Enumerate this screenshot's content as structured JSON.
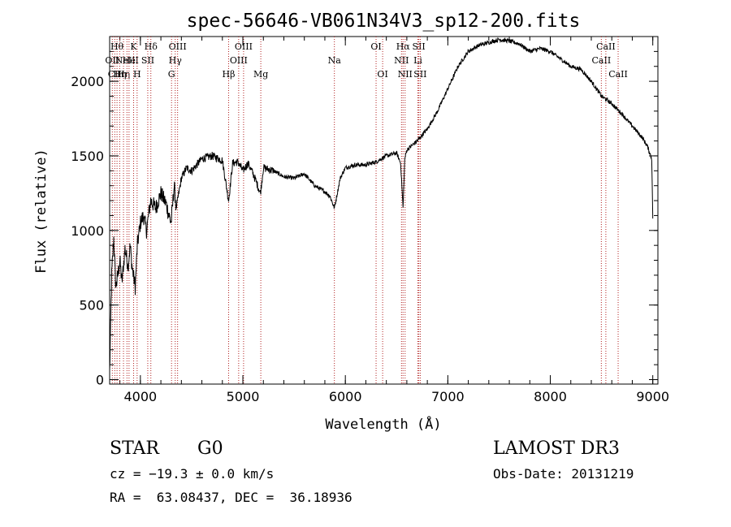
{
  "chart_data": {
    "type": "line",
    "title": "spec-56646-VB061N34V3_sp12-200.fits",
    "xlabel": "Wavelength (Å)",
    "ylabel": "Flux (relative)",
    "xlim": [
      3700,
      9050
    ],
    "ylim": [
      -30,
      2300
    ],
    "xticks": [
      4000,
      5000,
      6000,
      7000,
      8000,
      9000
    ],
    "yticks": [
      0,
      500,
      1000,
      1500,
      2000
    ],
    "grid": false,
    "line_color": "#000000",
    "marker_color": "#b22222",
    "series": [
      {
        "name": "flux",
        "x": [
          3700,
          3720,
          3740,
          3760,
          3780,
          3800,
          3820,
          3850,
          3880,
          3900,
          3920,
          3950,
          3970,
          4000,
          4030,
          4060,
          4100,
          4150,
          4200,
          4250,
          4300,
          4330,
          4350,
          4400,
          4450,
          4500,
          4600,
          4700,
          4800,
          4861,
          4900,
          4950,
          5000,
          5050,
          5100,
          5172,
          5200,
          5300,
          5400,
          5500,
          5600,
          5700,
          5800,
          5850,
          5893,
          5950,
          6000,
          6100,
          6200,
          6300,
          6400,
          6500,
          6540,
          6563,
          6580,
          6600,
          6700,
          6800,
          6900,
          7000,
          7100,
          7200,
          7300,
          7400,
          7500,
          7600,
          7700,
          7800,
          7900,
          8000,
          8100,
          8200,
          8300,
          8400,
          8500,
          8600,
          8700,
          8800,
          8900,
          8950,
          8990,
          9000
        ],
        "y": [
          50,
          700,
          950,
          620,
          700,
          800,
          650,
          880,
          760,
          900,
          750,
          620,
          900,
          1050,
          1100,
          1000,
          1200,
          1150,
          1250,
          1180,
          1050,
          1300,
          1150,
          1350,
          1420,
          1400,
          1480,
          1500,
          1470,
          1200,
          1450,
          1460,
          1400,
          1450,
          1380,
          1250,
          1420,
          1400,
          1360,
          1350,
          1380,
          1300,
          1260,
          1230,
          1150,
          1350,
          1420,
          1440,
          1440,
          1460,
          1500,
          1520,
          1450,
          1150,
          1480,
          1540,
          1600,
          1680,
          1800,
          1950,
          2100,
          2200,
          2240,
          2260,
          2280,
          2270,
          2250,
          2200,
          2220,
          2200,
          2150,
          2100,
          2080,
          2000,
          1900,
          1850,
          1780,
          1700,
          1620,
          1560,
          1480,
          1080
        ]
      }
    ],
    "lines": [
      {
        "wl": 3726,
        "label": "OII",
        "row": 2
      },
      {
        "wl": 3750,
        "label": "CII",
        "row": 3
      },
      {
        "wl": 3772,
        "label": "Hθ",
        "row": 1
      },
      {
        "wl": 3798,
        "label": "Hη",
        "row": 3
      },
      {
        "wl": 3835,
        "label": "Hη",
        "row": 3
      },
      {
        "wl": 3869,
        "label": "NeIII",
        "row": 2
      },
      {
        "wl": 3889,
        "label": "He",
        "row": 2
      },
      {
        "wl": 3934,
        "label": "K",
        "row": 1
      },
      {
        "wl": 3968,
        "label": "H",
        "row": 3
      },
      {
        "wl": 4072,
        "label": "SII",
        "row": 2
      },
      {
        "wl": 4102,
        "label": "Hδ",
        "row": 1
      },
      {
        "wl": 4304,
        "label": "G",
        "row": 3
      },
      {
        "wl": 4340,
        "label": "Hγ",
        "row": 2
      },
      {
        "wl": 4363,
        "label": "OIII",
        "row": 1
      },
      {
        "wl": 4861,
        "label": "Hβ",
        "row": 3
      },
      {
        "wl": 4959,
        "label": "OIII",
        "row": 2
      },
      {
        "wl": 5007,
        "label": "OIII",
        "row": 1
      },
      {
        "wl": 5175,
        "label": "Mg",
        "row": 3
      },
      {
        "wl": 5893,
        "label": "Na",
        "row": 2
      },
      {
        "wl": 6300,
        "label": "OI",
        "row": 1
      },
      {
        "wl": 6364,
        "label": "OI",
        "row": 3
      },
      {
        "wl": 6548,
        "label": "NII",
        "row": 2
      },
      {
        "wl": 6563,
        "label": "Hα",
        "row": 1
      },
      {
        "wl": 6583,
        "label": "NII",
        "row": 3
      },
      {
        "wl": 6708,
        "label": "Li",
        "row": 2
      },
      {
        "wl": 6717,
        "label": "SII",
        "row": 1
      },
      {
        "wl": 6731,
        "label": "SII",
        "row": 3
      },
      {
        "wl": 8498,
        "label": "CaII",
        "row": 2
      },
      {
        "wl": 8542,
        "label": "CaII",
        "row": 1
      },
      {
        "wl": 8662,
        "label": "CaII",
        "row": 3
      }
    ]
  },
  "info": {
    "class": "STAR",
    "subclass": "G0",
    "survey": "LAMOST DR3",
    "cz": "cz = −19.3 ± 0.0 km/s",
    "obs_date": "Obs-Date: 20131219",
    "coords": "RA =  63.08437, DEC =  36.18936"
  }
}
